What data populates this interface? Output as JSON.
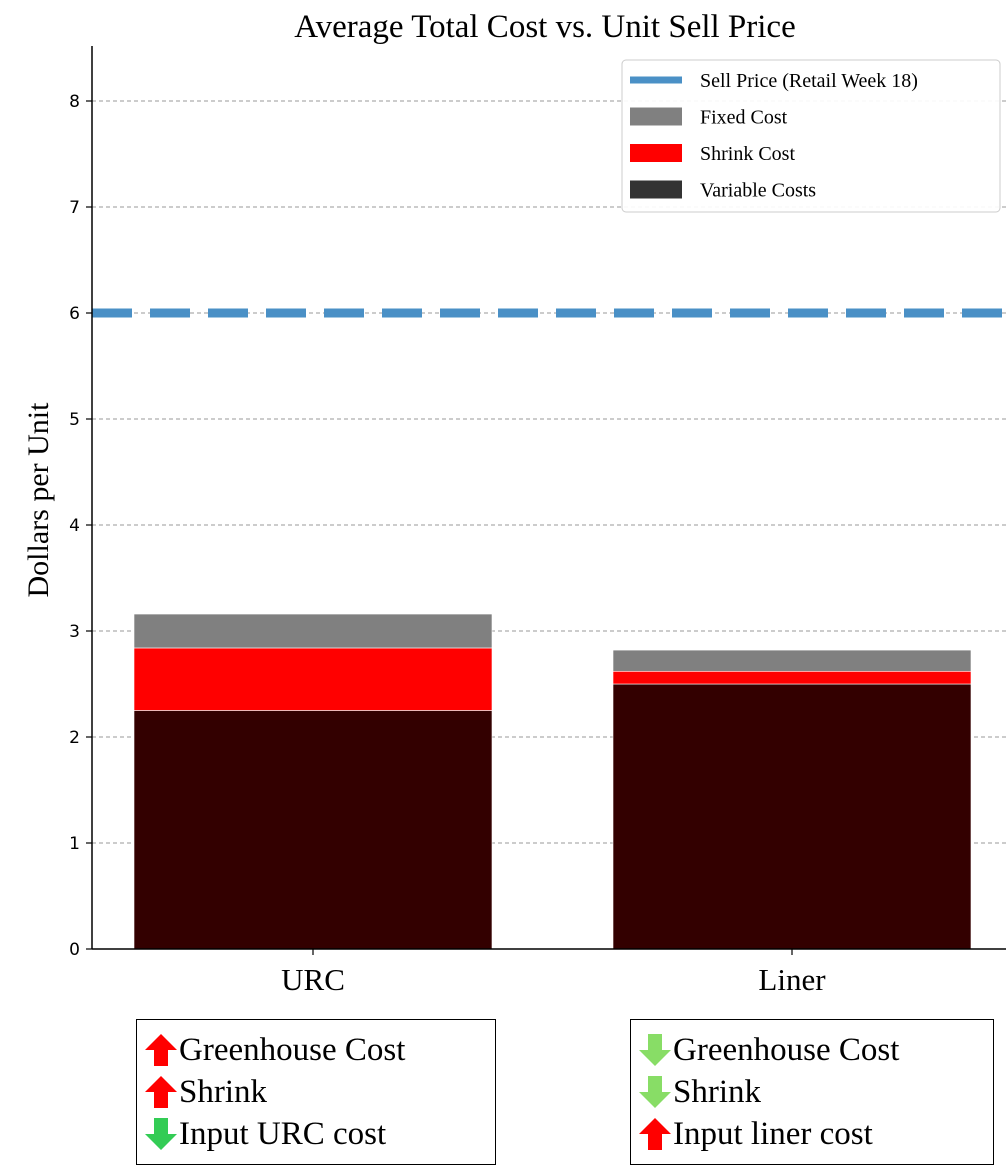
{
  "chart_data": {
    "type": "bar",
    "stacked": true,
    "title": "Average Total Cost vs. Unit Sell Price",
    "ylabel": "Dollars per Unit",
    "xlabel": "",
    "categories": [
      "URC",
      "Liner"
    ],
    "ylim": [
      0,
      8.5
    ],
    "yticks": [
      0,
      1,
      2,
      3,
      4,
      5,
      6,
      7,
      8
    ],
    "grid": true,
    "legend_position": "top-right",
    "series": [
      {
        "name": "Variable Costs",
        "values": [
          2.25,
          2.5
        ],
        "color": "#330000"
      },
      {
        "name": "Shrink Cost",
        "values": [
          0.59,
          0.12
        ],
        "color": "#ff0000"
      },
      {
        "name": "Fixed Cost",
        "values": [
          0.32,
          0.2
        ],
        "color": "#808080"
      }
    ],
    "hline": {
      "name": "Sell Price (Retail Week 18)",
      "value": 6.0,
      "color": "#4a90c6"
    },
    "legend_order": [
      "Sell Price (Retail Week 18)",
      "Fixed Cost",
      "Shrink Cost",
      "Variable Costs"
    ],
    "legend_swatch_colors": [
      "#4a90c6",
      "#808080",
      "#ff0000",
      "#333333"
    ]
  },
  "annotations": [
    {
      "items": [
        {
          "direction": "up",
          "color": "#ff0000",
          "text": "Greenhouse Cost"
        },
        {
          "direction": "up",
          "color": "#ff0000",
          "text": "Shrink"
        },
        {
          "direction": "down",
          "color": "#33cc55",
          "text": "Input URC cost"
        }
      ]
    },
    {
      "items": [
        {
          "direction": "down",
          "color": "#88dd66",
          "text": "Greenhouse Cost"
        },
        {
          "direction": "down",
          "color": "#88dd66",
          "text": "Shrink"
        },
        {
          "direction": "up",
          "color": "#ff0000",
          "text": "Input liner cost"
        }
      ]
    }
  ]
}
